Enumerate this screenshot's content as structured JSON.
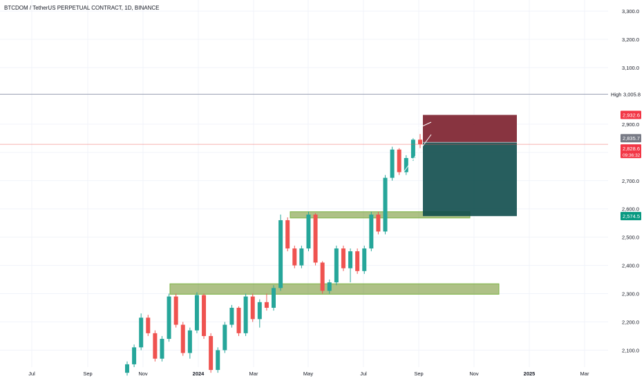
{
  "header": {
    "symbol_line": "BTCDOM / TetherUS PERPETUAL CONTRACT, 1D, BINANCE"
  },
  "colors": {
    "up": "#26a69a",
    "down": "#ef5350",
    "grid": "#f0f3fa",
    "axis_text": "#131722",
    "zone_fill": "#6b8e23",
    "zone_stroke": "#7cb342",
    "stop_fill": "#7b1e2b",
    "target_fill": "#0f4c4c",
    "high_line": "#9aa0b4",
    "price_line": "#ef5350"
  },
  "chart_data": {
    "type": "candlestick",
    "x_axis": {
      "ticks": [
        "Jul",
        "Sep",
        "Nov",
        "2024",
        "Mar",
        "May",
        "Jul",
        "Sep",
        "Nov",
        "2025",
        "Mar"
      ]
    },
    "y_axis": {
      "ylim": [
        2040,
        3310
      ],
      "ticks": [
        "3,300.0",
        "3,200.0",
        "3,100.0",
        "2,900.0",
        "2,800.0",
        "2,700.0",
        "2,600.0",
        "2,500.0",
        "2,400.0",
        "2,300.0",
        "2,200.0",
        "2,100.0"
      ]
    },
    "high_label": {
      "label": "High",
      "value": "3,005.8",
      "price": 3005.8
    },
    "price_labels": [
      {
        "name": "stop",
        "value": "2,932.6",
        "price": 2932.6,
        "color": "#f23645"
      },
      {
        "name": "entry",
        "value": "2,835.7",
        "price": 2835.7,
        "color": "#787b86"
      },
      {
        "name": "last",
        "value": "2,828.6",
        "price": 2828.6,
        "color": "#f23645",
        "countdown": "09:36:32"
      },
      {
        "name": "target",
        "value": "2,574.5",
        "price": 2574.5,
        "color": "#089981"
      }
    ],
    "zones": [
      {
        "name": "upper-support-zone",
        "top": 2590,
        "bottom": 2568,
        "from": "May",
        "to": "Nov"
      },
      {
        "name": "lower-support-zone",
        "top": 2335,
        "bottom": 2298,
        "from": "Nov",
        "to": "Nov"
      }
    ],
    "trade": {
      "stop": 2932.6,
      "entry": 2835.7,
      "target": 2574.5
    },
    "series": [
      {
        "x": "Nov",
        "o": 2020,
        "h": 2060,
        "l": 2010,
        "c": 2050
      },
      {
        "x": "Nov",
        "o": 2050,
        "h": 2120,
        "l": 2040,
        "c": 2110
      },
      {
        "x": "Nov",
        "o": 2110,
        "h": 2230,
        "l": 2100,
        "c": 2215
      },
      {
        "x": "Nov",
        "o": 2215,
        "h": 2225,
        "l": 2150,
        "c": 2160
      },
      {
        "x": "Nov",
        "o": 2160,
        "h": 2170,
        "l": 2060,
        "c": 2070
      },
      {
        "x": "Nov",
        "o": 2070,
        "h": 2150,
        "l": 2060,
        "c": 2140
      },
      {
        "x": "Dec",
        "o": 2140,
        "h": 2300,
        "l": 2130,
        "c": 2290
      },
      {
        "x": "Dec",
        "o": 2290,
        "h": 2300,
        "l": 2180,
        "c": 2190
      },
      {
        "x": "Dec",
        "o": 2190,
        "h": 2200,
        "l": 2080,
        "c": 2090
      },
      {
        "x": "Dec",
        "o": 2090,
        "h": 2180,
        "l": 2070,
        "c": 2170
      },
      {
        "x": "Dec",
        "o": 2170,
        "h": 2305,
        "l": 2160,
        "c": 2295
      },
      {
        "x": "Dec",
        "o": 2295,
        "h": 2300,
        "l": 2140,
        "c": 2150
      },
      {
        "x": "2024",
        "o": 2150,
        "h": 2160,
        "l": 2020,
        "c": 2030
      },
      {
        "x": "2024",
        "o": 2030,
        "h": 2110,
        "l": 2020,
        "c": 2100
      },
      {
        "x": "2024",
        "o": 2100,
        "h": 2200,
        "l": 2090,
        "c": 2190
      },
      {
        "x": "2024",
        "o": 2190,
        "h": 2260,
        "l": 2180,
        "c": 2250
      },
      {
        "x": "Feb",
        "o": 2250,
        "h": 2255,
        "l": 2150,
        "c": 2160
      },
      {
        "x": "Feb",
        "o": 2160,
        "h": 2300,
        "l": 2150,
        "c": 2290
      },
      {
        "x": "Feb",
        "o": 2290,
        "h": 2300,
        "l": 2200,
        "c": 2210
      },
      {
        "x": "Mar",
        "o": 2210,
        "h": 2280,
        "l": 2180,
        "c": 2270
      },
      {
        "x": "Mar",
        "o": 2270,
        "h": 2300,
        "l": 2240,
        "c": 2250
      },
      {
        "x": "Mar",
        "o": 2250,
        "h": 2330,
        "l": 2240,
        "c": 2320
      },
      {
        "x": "Mar",
        "o": 2320,
        "h": 2580,
        "l": 2310,
        "c": 2560
      },
      {
        "x": "Apr",
        "o": 2560,
        "h": 2570,
        "l": 2450,
        "c": 2460
      },
      {
        "x": "Apr",
        "o": 2460,
        "h": 2470,
        "l": 2390,
        "c": 2400
      },
      {
        "x": "Apr",
        "o": 2400,
        "h": 2470,
        "l": 2390,
        "c": 2460
      },
      {
        "x": "Apr",
        "o": 2460,
        "h": 2590,
        "l": 2450,
        "c": 2580
      },
      {
        "x": "May",
        "o": 2580,
        "h": 2585,
        "l": 2400,
        "c": 2410
      },
      {
        "x": "May",
        "o": 2410,
        "h": 2415,
        "l": 2300,
        "c": 2310
      },
      {
        "x": "May",
        "o": 2310,
        "h": 2350,
        "l": 2300,
        "c": 2340
      },
      {
        "x": "May",
        "o": 2340,
        "h": 2470,
        "l": 2330,
        "c": 2460
      },
      {
        "x": "Jun",
        "o": 2460,
        "h": 2470,
        "l": 2380,
        "c": 2390
      },
      {
        "x": "Jun",
        "o": 2390,
        "h": 2460,
        "l": 2340,
        "c": 2450
      },
      {
        "x": "Jun",
        "o": 2450,
        "h": 2460,
        "l": 2370,
        "c": 2380
      },
      {
        "x": "Jun",
        "o": 2380,
        "h": 2470,
        "l": 2370,
        "c": 2460
      },
      {
        "x": "Jul",
        "o": 2460,
        "h": 2590,
        "l": 2450,
        "c": 2580
      },
      {
        "x": "Jul",
        "o": 2580,
        "h": 2590,
        "l": 2510,
        "c": 2520
      },
      {
        "x": "Jul",
        "o": 2520,
        "h": 2720,
        "l": 2510,
        "c": 2710
      },
      {
        "x": "Aug",
        "o": 2710,
        "h": 2820,
        "l": 2700,
        "c": 2810
      },
      {
        "x": "Aug",
        "o": 2810,
        "h": 2815,
        "l": 2720,
        "c": 2730
      },
      {
        "x": "Aug",
        "o": 2730,
        "h": 2790,
        "l": 2720,
        "c": 2780
      },
      {
        "x": "Aug",
        "o": 2780,
        "h": 2850,
        "l": 2770,
        "c": 2845
      },
      {
        "x": "Sep",
        "o": 2845,
        "h": 2865,
        "l": 2815,
        "c": 2829
      }
    ]
  }
}
